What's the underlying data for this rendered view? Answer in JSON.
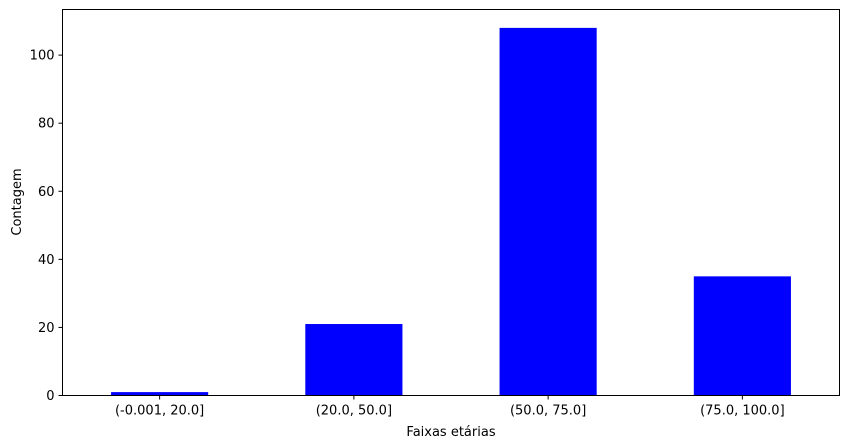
{
  "chart_data": {
    "type": "bar",
    "title": "",
    "xlabel": "Faixas etárias",
    "ylabel": "Contagem",
    "categories": [
      "(-0.001, 20.0]",
      "(20.0, 50.0]",
      "(50.0, 75.0]",
      "(75.0, 100.0]"
    ],
    "values": [
      1,
      21,
      108,
      35
    ],
    "ylim": [
      0,
      113.4
    ],
    "yticks": [
      0,
      20,
      40,
      60,
      80,
      100
    ],
    "bar_color": "#0000ff",
    "grid": false,
    "legend": "none"
  }
}
